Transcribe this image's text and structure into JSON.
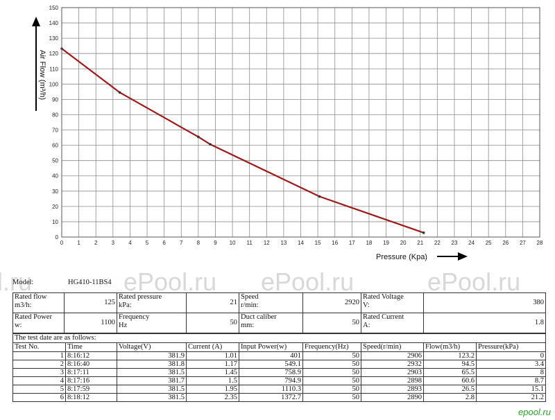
{
  "chart_data": {
    "type": "line",
    "xlabel": "Pressure (Kpa)",
    "ylabel": "Air Flow (m³/h)",
    "xlim": [
      0,
      28
    ],
    "ylim": [
      0,
      150
    ],
    "xticks": [
      "0",
      "1",
      "2",
      "3",
      "4",
      "5",
      "6",
      "7",
      "8",
      "9",
      "10",
      "11",
      "12",
      "13",
      "14",
      "15",
      "16",
      "17",
      "18",
      "19",
      "20",
      "21",
      "22",
      "23",
      "24",
      "25",
      "26",
      "27",
      "28"
    ],
    "yticks": [
      "0",
      "10",
      "20",
      "30",
      "40",
      "50",
      "60",
      "70",
      "80",
      "90",
      "100",
      "110",
      "120",
      "130",
      "140",
      "150"
    ],
    "grid": true,
    "series": [
      {
        "color": "#a01818",
        "points": [
          [
            0,
            123.2
          ],
          [
            3.4,
            94.5
          ],
          [
            8,
            65.5
          ],
          [
            8.7,
            60.6
          ],
          [
            15.1,
            26.5
          ],
          [
            21.2,
            2.8
          ]
        ]
      }
    ]
  },
  "report": {
    "model_label": "Model:",
    "model_value": "HG410-11BS4",
    "specs": [
      [
        {
          "label": "Rated flow\nm3/h:",
          "value": "125"
        },
        {
          "label": "Rated pressure\nkPa:",
          "value": "21"
        },
        {
          "label": "Speed\nr/min:",
          "value": "2920"
        },
        {
          "label": "Rated Voltage\nV:",
          "value": "380"
        }
      ],
      [
        {
          "label": "Rated Power\nw:",
          "value": "1100"
        },
        {
          "label": "Frequency\nHz",
          "value": "50"
        },
        {
          "label": "Duct caliber\nmm:",
          "value": "50"
        },
        {
          "label": "Rated Current\nA:",
          "value": "1.8"
        }
      ]
    ],
    "test_note": "The test date are as follows:",
    "columns": [
      "Test No.",
      "Time",
      "Voltage(V)",
      "Current (A)",
      "Input Power(w)",
      "Frequency(Hz)",
      "Speed(r/min)",
      "Flow(m3/h)",
      "Pressure(kPa)"
    ],
    "rows": [
      [
        "1",
        "8:16:12",
        "381.9",
        "1.01",
        "401",
        "50",
        "2906",
        "123.2",
        "0"
      ],
      [
        "2",
        "8:16:40",
        "381.8",
        "1.17",
        "549.1",
        "50",
        "2932",
        "94.5",
        "3.4"
      ],
      [
        "3",
        "8:17:11",
        "381.5",
        "1.45",
        "758.9",
        "50",
        "2903",
        "65.5",
        "8"
      ],
      [
        "4",
        "8:17:16",
        "381.7",
        "1.5",
        "794.9",
        "50",
        "2898",
        "60.6",
        "8.7"
      ],
      [
        "5",
        "8:17:59",
        "381.5",
        "1.95",
        "1110.3",
        "50",
        "2893",
        "26.5",
        "15.1"
      ],
      [
        "6",
        "8:18:12",
        "381.5",
        "2.35",
        "1372.7",
        "50",
        "2890",
        "2.8",
        "21.2"
      ]
    ]
  },
  "watermark": [
    "l.ru",
    "ePool.ru",
    "ePool.ru",
    "ePool.ru"
  ],
  "logo": "epool.ru"
}
